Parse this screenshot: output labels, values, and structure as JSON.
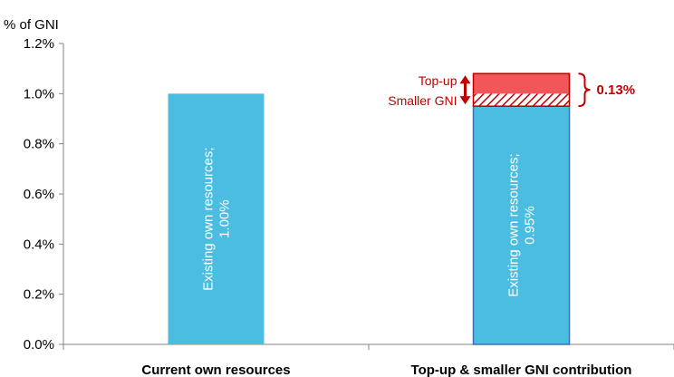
{
  "chart_data": {
    "type": "bar",
    "stacked": true,
    "ylabel": "% of GNI",
    "ylim": [
      0,
      1.2
    ],
    "yticks": [
      "0.0%",
      "0.2%",
      "0.4%",
      "0.6%",
      "0.8%",
      "1.0%",
      "1.2%"
    ],
    "categories": [
      "Current own resources",
      "Top-up & smaller GNI contribution"
    ],
    "series": [
      {
        "values": [
          1.0,
          0.95
        ],
        "labels": [
          "Existing own resources;\n1.00%",
          "Existing own resources;\n0.95%"
        ],
        "color": "#4bbde0"
      },
      {
        "name": "Smaller GNI",
        "values": [
          0,
          0.05
        ],
        "pattern": "hatched",
        "color": "#c00000"
      },
      {
        "name": "Top-up",
        "values": [
          0,
          0.08
        ],
        "color": "#f0565a"
      }
    ],
    "annotations": {
      "topup_label": "Top-up",
      "smaller_gni_label": "Smaller GNI",
      "brace_value": "0.13%"
    },
    "grid": false,
    "legend": "none"
  }
}
